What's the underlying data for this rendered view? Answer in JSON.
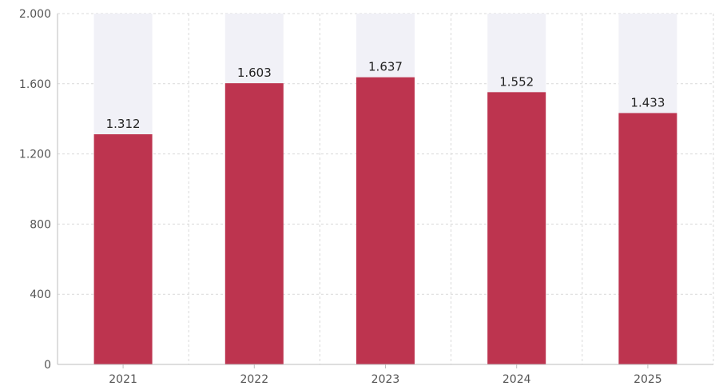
{
  "chart_data": {
    "type": "bar",
    "categories": [
      "2021",
      "2022",
      "2023",
      "2024",
      "2025"
    ],
    "values": [
      1312,
      1603,
      1637,
      1552,
      1433
    ],
    "data_labels": [
      "1.312",
      "1.603",
      "1.637",
      "1.552",
      "1.433"
    ],
    "ylim": [
      0,
      2000
    ],
    "yticks": [
      0,
      400,
      800,
      1200,
      1600,
      2000
    ],
    "ytick_labels": [
      "0",
      "400",
      "800",
      "1.200",
      "1.600",
      "2.000"
    ],
    "grid": true,
    "title": "",
    "xlabel": "",
    "ylabel": "",
    "colors": {
      "bar": "#bd344f",
      "background_column": "#f1f1f7"
    }
  }
}
